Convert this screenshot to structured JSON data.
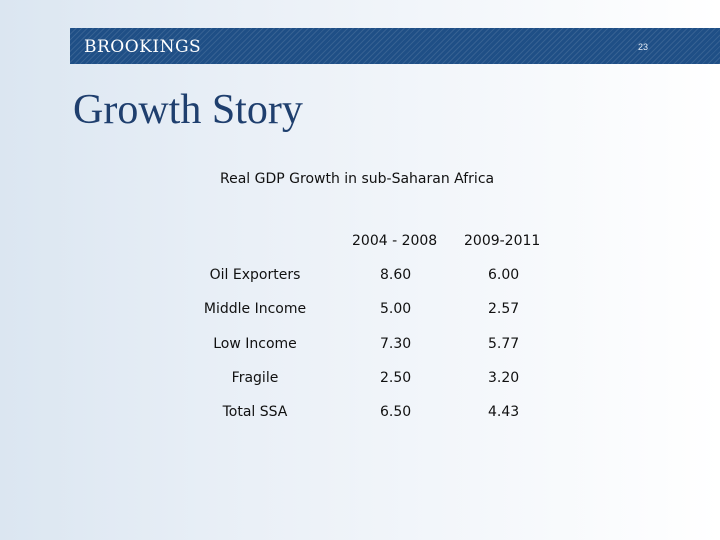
{
  "header": {
    "brand": "BROOKINGS",
    "slide_number": "23"
  },
  "slide": {
    "title": "Growth Story",
    "table_caption": "Real GDP Growth in sub-Saharan Africa"
  },
  "table": {
    "columns": [
      "2004 - 2008",
      "2009-2011"
    ],
    "rows": [
      {
        "label": "Oil Exporters",
        "values": [
          "8.60",
          "6.00"
        ]
      },
      {
        "label": "Middle Income",
        "values": [
          "5.00",
          "2.57"
        ]
      },
      {
        "label": "Low Income",
        "values": [
          "7.30",
          "5.77"
        ]
      },
      {
        "label": "Fragile",
        "values": [
          "2.50",
          "3.20"
        ]
      },
      {
        "label": "Total SSA",
        "values": [
          "6.50",
          "4.43"
        ]
      }
    ]
  },
  "colors": {
    "brand_bar": "#1f4f86",
    "title": "#1f3f6e",
    "text": "#111111"
  }
}
